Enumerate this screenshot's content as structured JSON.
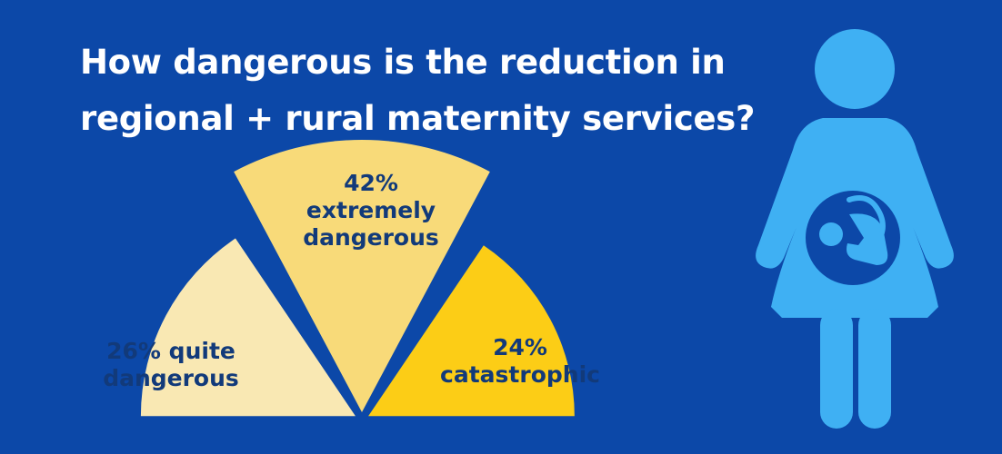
{
  "title": {
    "line1": "How dangerous is the reduction in",
    "line2": "regional + rural maternity services?"
  },
  "colors": {
    "background": "#0c48a8",
    "title": "#ffffff",
    "label": "#123a7a",
    "figure": "#3fb0f3",
    "figure_cutout": "#0c48a8"
  },
  "chart_data": {
    "type": "pie",
    "style": "exploded fan (half polar area)",
    "slices": [
      {
        "name": "quite dangerous",
        "value": 26,
        "color": "#f9e8b3",
        "label_lines": [
          "26% quite",
          "dangerous"
        ]
      },
      {
        "name": "extremely dangerous",
        "value": 42,
        "color": "#f8da79",
        "label_lines": [
          "42%",
          "extremely",
          "dangerous"
        ]
      },
      {
        "name": "catastrophic",
        "value": 24,
        "color": "#fccd16",
        "label_lines": [
          "24%",
          "catastrophic"
        ]
      }
    ]
  },
  "figure": {
    "icon": "pregnant-woman-icon",
    "inner_icon": "baby-icon"
  }
}
